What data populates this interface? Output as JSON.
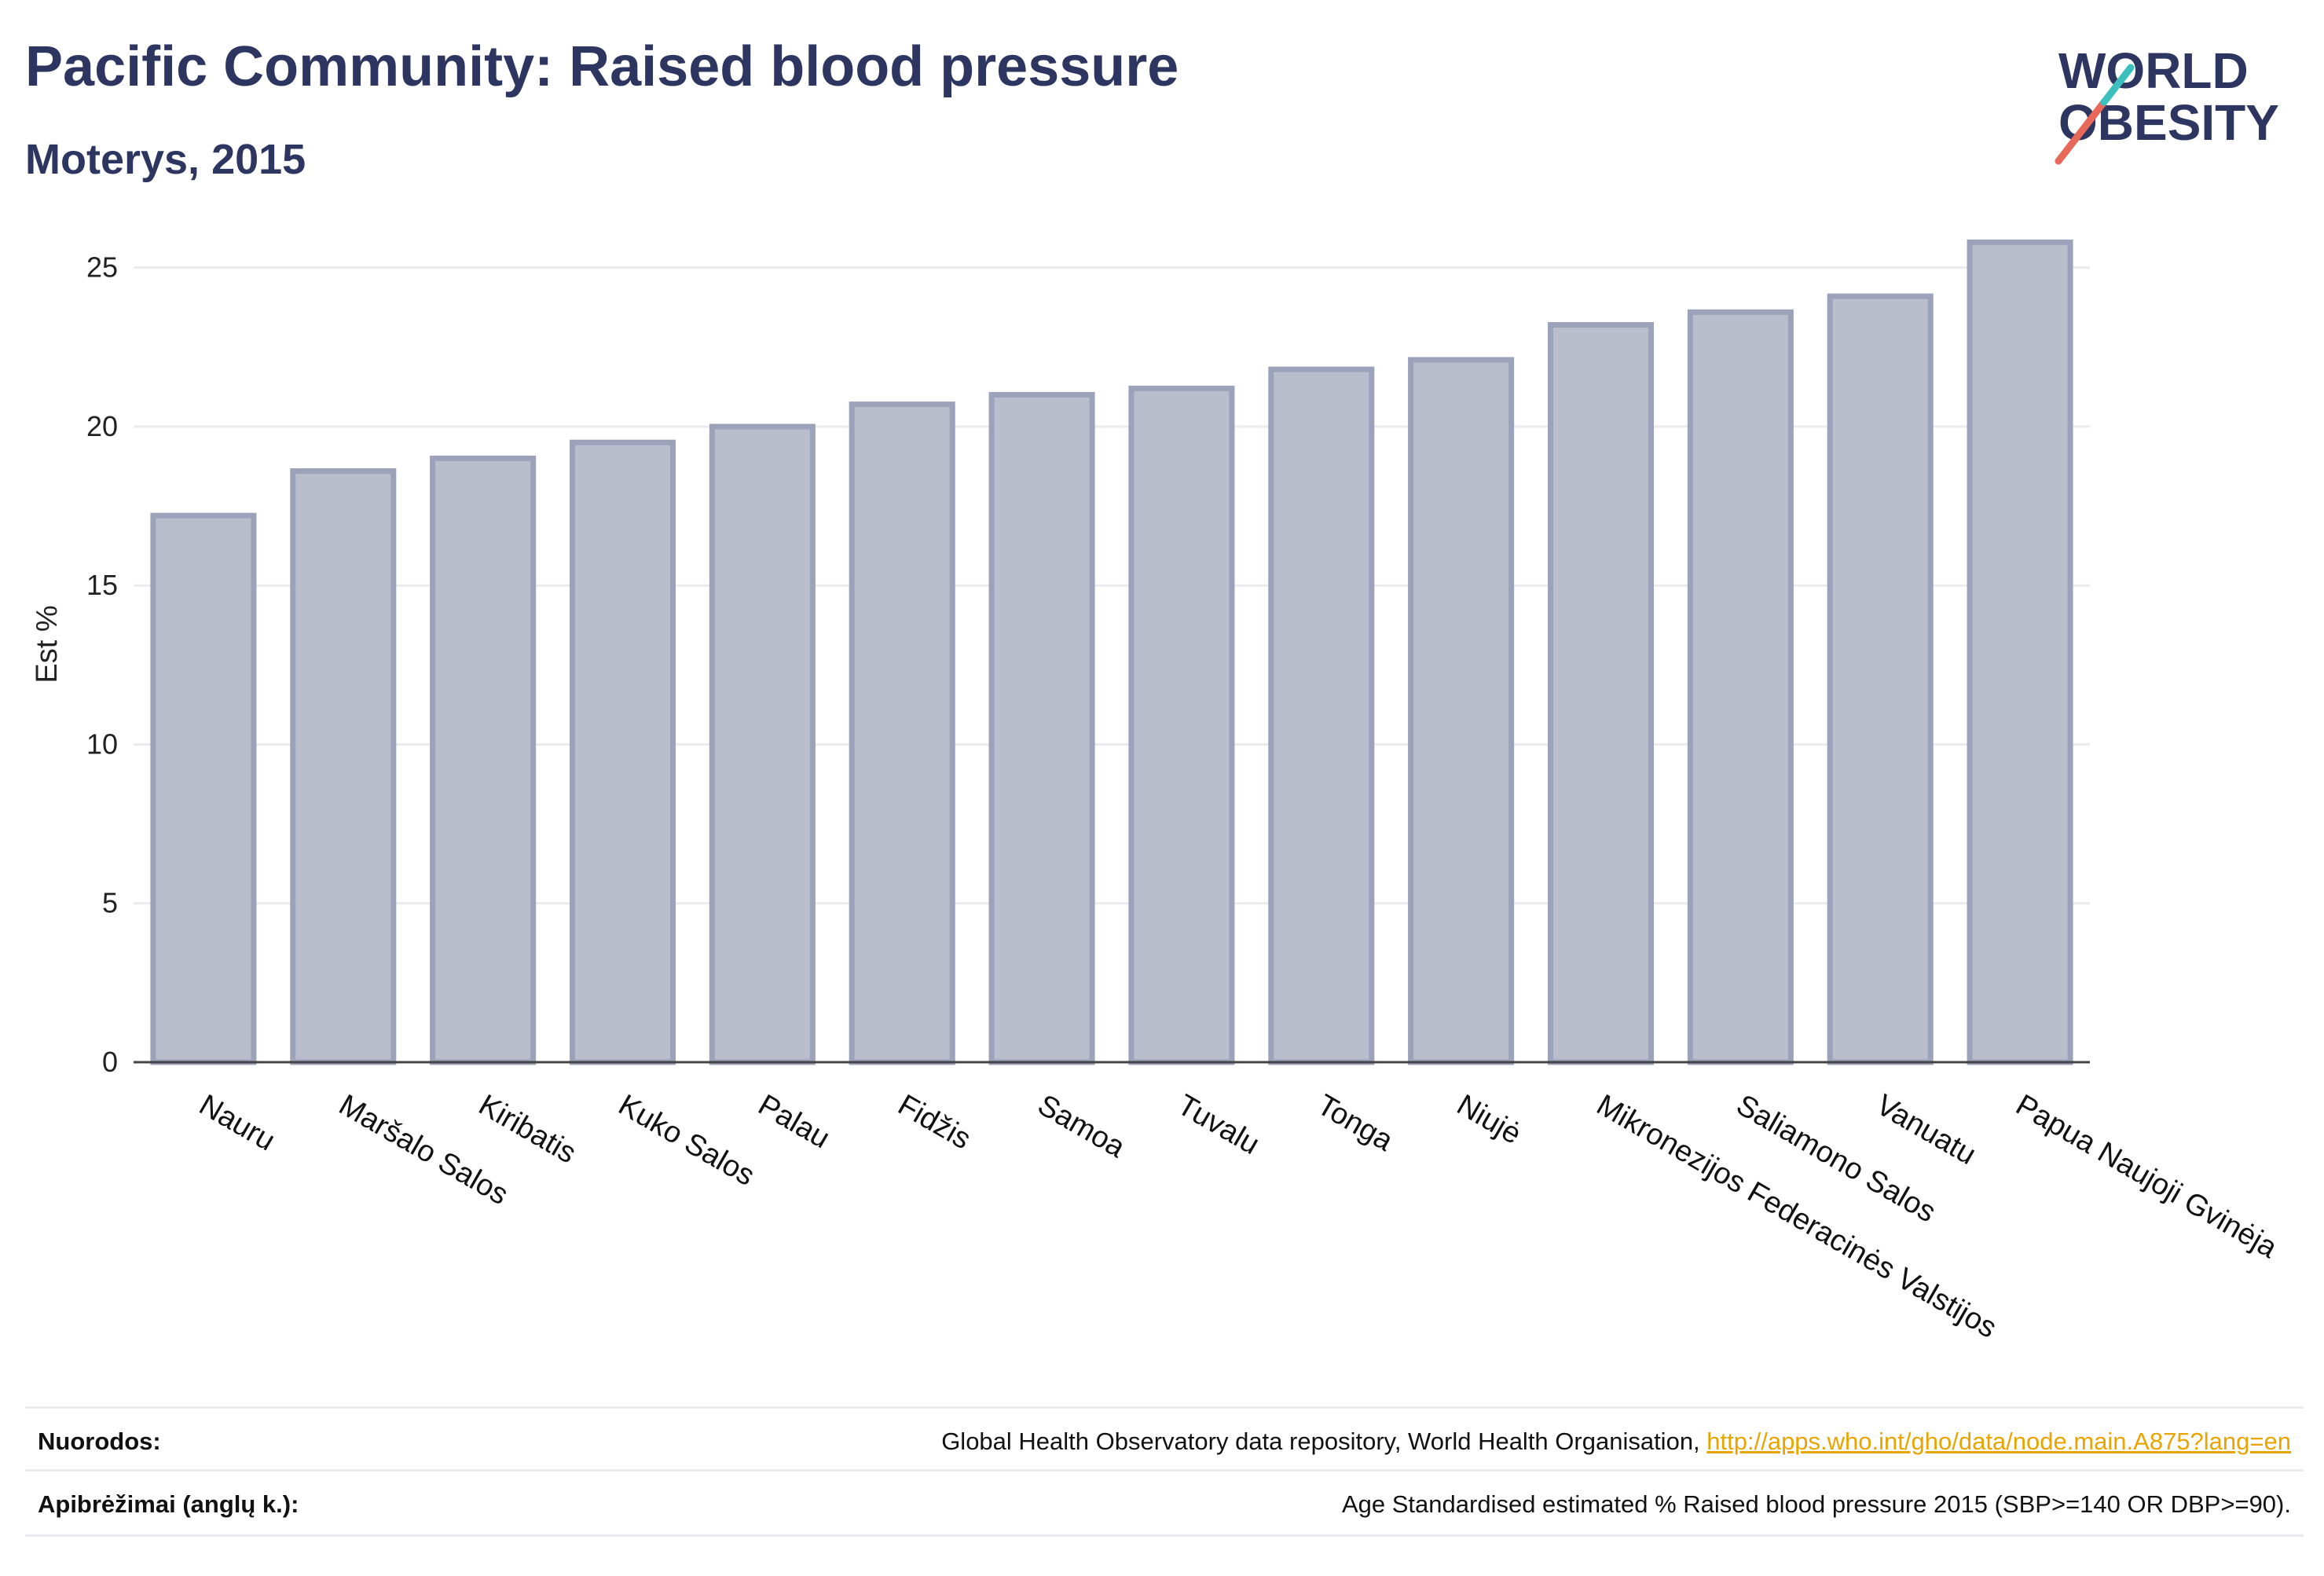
{
  "header": {
    "title": "Pacific Community: Raised blood pressure",
    "subtitle": "Moterys, 2015"
  },
  "logo": {
    "line1": "WORLD",
    "line2": "OBESITY",
    "slash_colors": [
      "#e8685a",
      "#3bbfbf"
    ],
    "text_color": "#2d3561"
  },
  "chart_data": {
    "type": "bar",
    "categories": [
      "Nauru",
      "Maršalo Salos",
      "Kiribatis",
      "Kuko Salos",
      "Palau",
      "Fidžis",
      "Samoa",
      "Tuvalu",
      "Tonga",
      "Niujė",
      "Mikronezijos Federacinės Valstijos",
      "Saliamono Salos",
      "Vanuatu",
      "Papua Naujoji Gvinėja"
    ],
    "values": [
      17.2,
      18.6,
      19.0,
      19.5,
      20.0,
      20.7,
      21.0,
      21.2,
      21.8,
      22.1,
      23.2,
      23.6,
      24.1,
      25.8
    ],
    "ylabel": "Est %",
    "xlabel": "",
    "ylim": [
      0,
      26.5
    ],
    "yticks": [
      0,
      5,
      10,
      15,
      20,
      25
    ],
    "grid": true,
    "bar_color": "#b9bdcc",
    "bar_border_color": "#9ca2ba"
  },
  "footer": {
    "sources_label": "Nuorodos:",
    "sources_text": "Global Health Observatory data repository, World Health Organisation, ",
    "sources_link": "http://apps.who.int/gho/data/node.main.A875?lang=en",
    "definition_label": "Apibrėžimai (anglų k.):",
    "definition_text": "Age Standardised estimated % Raised blood pressure 2015 (SBP>=140 OR DBP>=90)."
  }
}
